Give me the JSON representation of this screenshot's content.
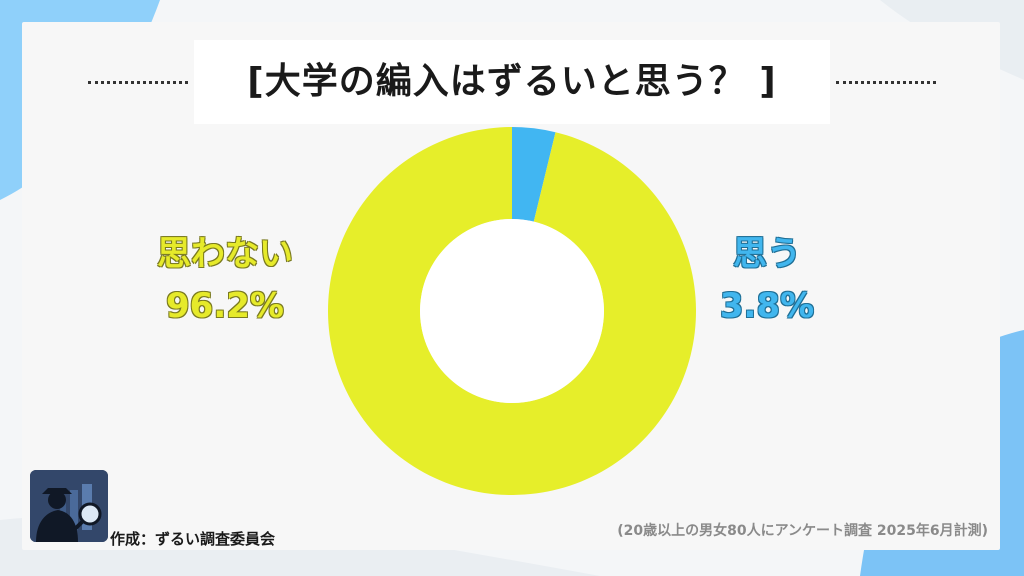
{
  "title": "[大学の編入はずるいと思う？ ]",
  "credit": "作成：ずるい調査委員会",
  "note": "(20歳以上の男女80人にアンケート調査 2025年6月計測)",
  "colors": {
    "no": "#e6ee2a",
    "yes": "#41b6f2",
    "background_accent": "#7cc8f8"
  },
  "logo": {
    "icon": "detective-magnifier-icon"
  },
  "chart_data": {
    "type": "pie",
    "donut": true,
    "title": "[大学の編入はずるいと思う？ ]",
    "categories": [
      "思う",
      "思わない"
    ],
    "values": [
      3.8,
      96.2
    ],
    "labels": [
      "3.8%",
      "96.2%"
    ],
    "start": "top",
    "direction": "clockwise",
    "legend": "none",
    "grid": false
  }
}
